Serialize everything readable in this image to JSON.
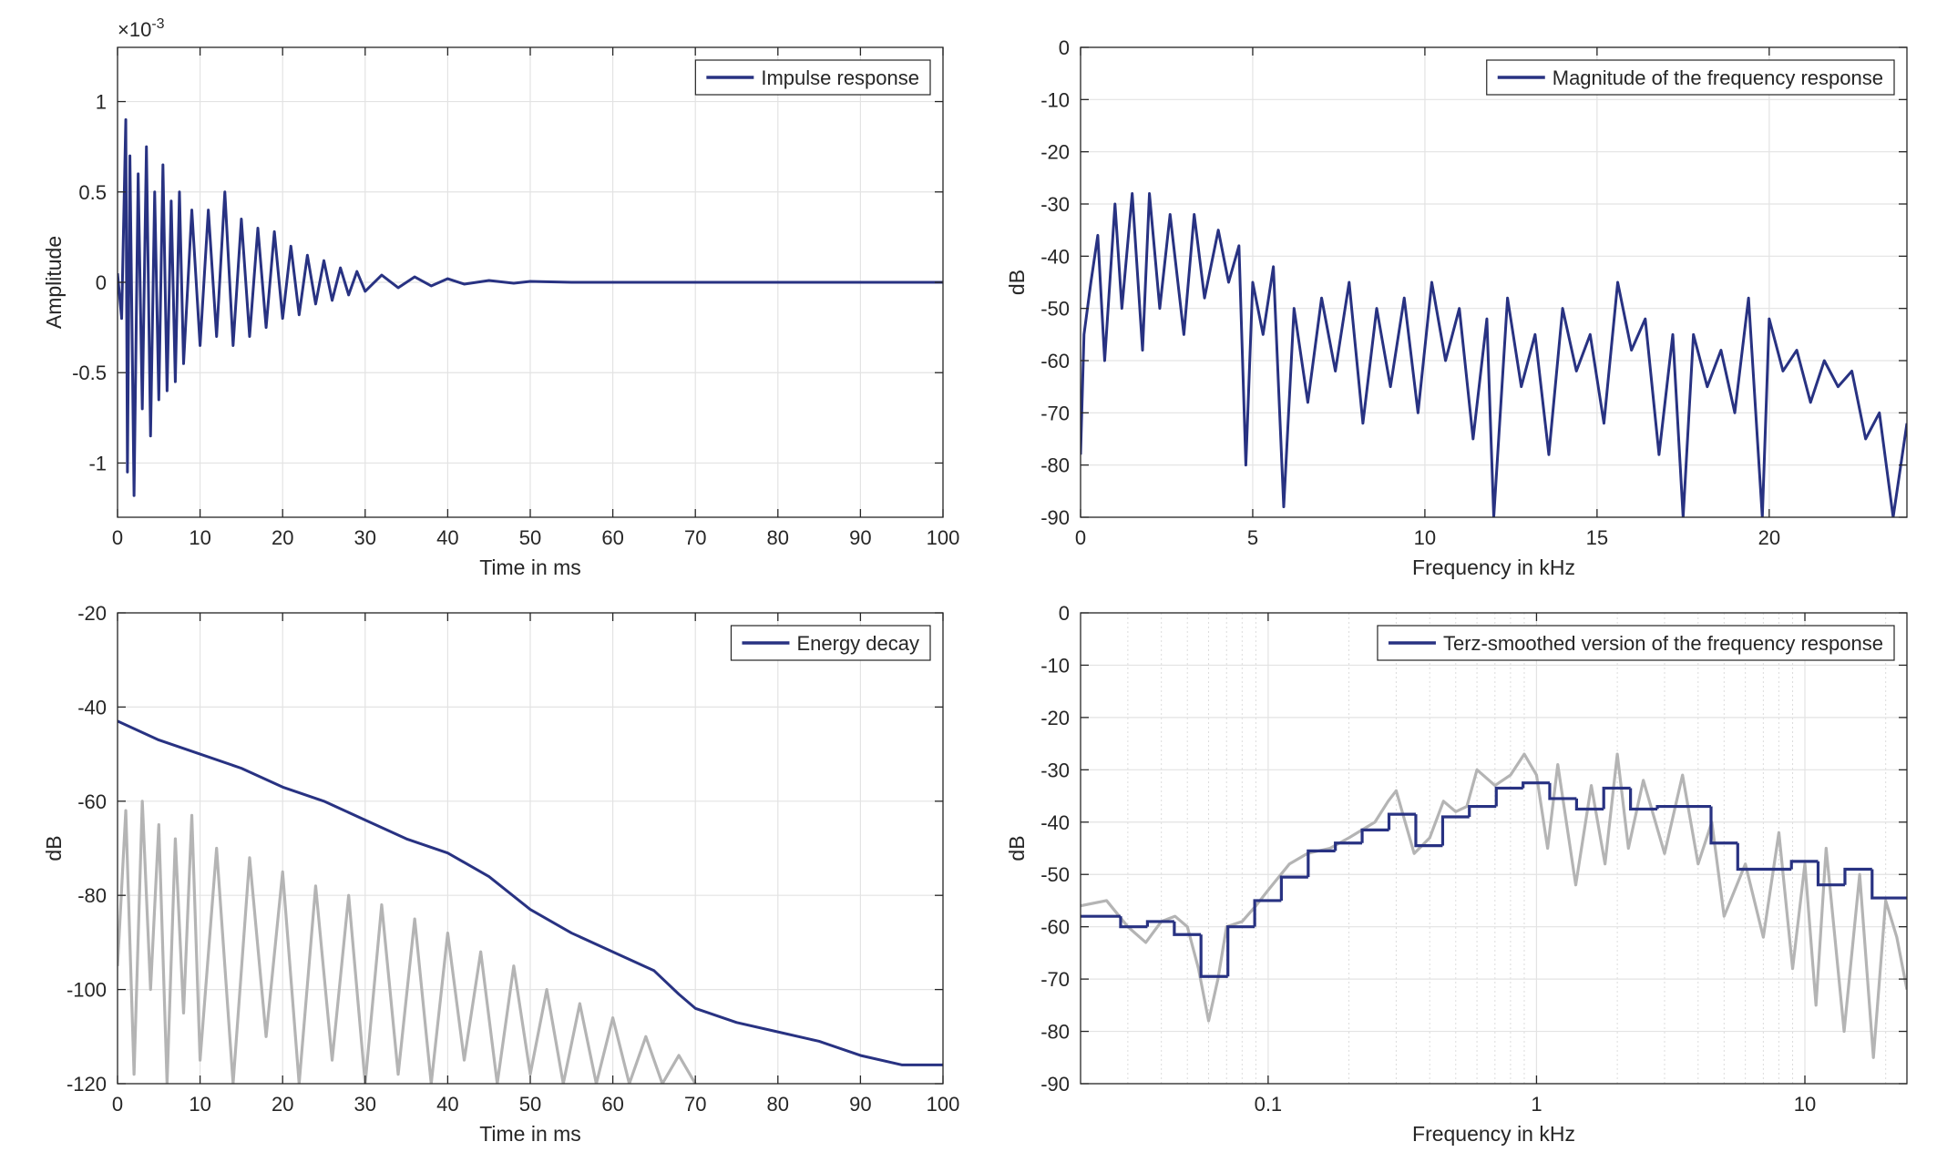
{
  "chart_data": [
    {
      "type": "line",
      "xlabel": "Time in ms",
      "ylabel": "Amplitude",
      "y_multiplier": {
        "base": "×10",
        "exponent": "-3"
      },
      "xlim": [
        0,
        100
      ],
      "xticks": [
        0,
        10,
        20,
        30,
        40,
        50,
        60,
        70,
        80,
        90,
        100
      ],
      "ylim": [
        -1.3,
        1.3
      ],
      "yticks": [
        -1,
        -0.5,
        0,
        0.5,
        1
      ],
      "grid": true,
      "legend": "northeast",
      "x": [
        0,
        0.5,
        1,
        1.2,
        1.5,
        2,
        2.5,
        3,
        3.5,
        4,
        4.5,
        5,
        5.5,
        6,
        6.5,
        7,
        7.5,
        8,
        9,
        10,
        11,
        12,
        13,
        14,
        15,
        16,
        17,
        18,
        19,
        20,
        21,
        22,
        23,
        24,
        25,
        26,
        27,
        28,
        29,
        30,
        32,
        34,
        36,
        38,
        40,
        42,
        45,
        48,
        50,
        55,
        60,
        70,
        80,
        90,
        100
      ],
      "series": [
        {
          "name": "Impulse response",
          "color": "#283282",
          "values": [
            0.05,
            -0.2,
            0.9,
            -1.05,
            0.7,
            -1.18,
            0.6,
            -0.7,
            0.75,
            -0.85,
            0.5,
            -0.65,
            0.65,
            -0.6,
            0.45,
            -0.55,
            0.5,
            -0.45,
            0.4,
            -0.35,
            0.4,
            -0.3,
            0.5,
            -0.35,
            0.35,
            -0.3,
            0.3,
            -0.25,
            0.28,
            -0.2,
            0.2,
            -0.18,
            0.15,
            -0.12,
            0.12,
            -0.1,
            0.08,
            -0.07,
            0.06,
            -0.05,
            0.04,
            -0.03,
            0.03,
            -0.02,
            0.02,
            -0.01,
            0.01,
            -0.005,
            0.005,
            0,
            0,
            0,
            0,
            0,
            0
          ]
        }
      ]
    },
    {
      "type": "line",
      "xlabel": "Frequency in kHz",
      "ylabel": "dB",
      "xlim": [
        0,
        24
      ],
      "xticks": [
        0,
        5,
        10,
        15,
        20
      ],
      "ylim": [
        -90,
        0
      ],
      "yticks": [
        -90,
        -80,
        -70,
        -60,
        -50,
        -40,
        -30,
        -20,
        -10,
        0
      ],
      "grid": true,
      "legend": "northeast",
      "x": [
        0,
        0.1,
        0.3,
        0.5,
        0.7,
        1,
        1.2,
        1.5,
        1.8,
        2,
        2.3,
        2.6,
        3,
        3.3,
        3.6,
        4,
        4.3,
        4.6,
        4.8,
        5,
        5.3,
        5.6,
        5.9,
        6.2,
        6.6,
        7,
        7.4,
        7.8,
        8.2,
        8.6,
        9,
        9.4,
        9.8,
        10.2,
        10.6,
        11,
        11.4,
        11.8,
        12,
        12.4,
        12.8,
        13.2,
        13.6,
        14,
        14.4,
        14.8,
        15.2,
        15.6,
        16,
        16.4,
        16.8,
        17.2,
        17.5,
        17.8,
        18.2,
        18.6,
        19,
        19.4,
        19.8,
        20,
        20.4,
        20.8,
        21.2,
        21.6,
        22,
        22.4,
        22.8,
        23.2,
        23.6,
        24
      ],
      "series": [
        {
          "name": "Magnitude of the frequency response",
          "color": "#283282",
          "values": [
            -78,
            -55,
            -45,
            -36,
            -60,
            -30,
            -50,
            -28,
            -58,
            -28,
            -50,
            -32,
            -55,
            -32,
            -48,
            -35,
            -45,
            -38,
            -80,
            -45,
            -55,
            -42,
            -88,
            -50,
            -68,
            -48,
            -62,
            -45,
            -72,
            -50,
            -65,
            -48,
            -70,
            -45,
            -60,
            -50,
            -75,
            -52,
            -90,
            -48,
            -65,
            -55,
            -78,
            -50,
            -62,
            -55,
            -72,
            -45,
            -58,
            -52,
            -78,
            -55,
            -90,
            -55,
            -65,
            -58,
            -70,
            -48,
            -90,
            -52,
            -62,
            -58,
            -68,
            -60,
            -65,
            -62,
            -75,
            -70,
            -90,
            -72
          ]
        }
      ]
    },
    {
      "type": "line",
      "xlabel": "Time in ms",
      "ylabel": "dB",
      "xlim": [
        0,
        100
      ],
      "xticks": [
        0,
        10,
        20,
        30,
        40,
        50,
        60,
        70,
        80,
        90,
        100
      ],
      "ylim": [
        -120,
        -20
      ],
      "yticks": [
        -120,
        -100,
        -80,
        -60,
        -40,
        -20
      ],
      "grid": true,
      "legend": "northeast",
      "series": [
        {
          "color": "#b4b4b4",
          "x": [
            0,
            1,
            2,
            3,
            4,
            5,
            6,
            7,
            8,
            9,
            10,
            12,
            14,
            16,
            18,
            20,
            22,
            24,
            26,
            28,
            30,
            32,
            34,
            36,
            38,
            40,
            42,
            44,
            46,
            48,
            50,
            52,
            54,
            56,
            58,
            60,
            62,
            64,
            66,
            68,
            70
          ],
          "values": [
            -95,
            -62,
            -118,
            -60,
            -100,
            -65,
            -120,
            -68,
            -105,
            -63,
            -115,
            -70,
            -120,
            -72,
            -110,
            -75,
            -120,
            -78,
            -115,
            -80,
            -120,
            -82,
            -118,
            -85,
            -120,
            -88,
            -115,
            -92,
            -120,
            -95,
            -118,
            -100,
            -120,
            -103,
            -120,
            -106,
            -120,
            -110,
            -120,
            -114,
            -120
          ]
        },
        {
          "name": "Energy decay",
          "color": "#283282",
          "x": [
            0,
            5,
            10,
            15,
            20,
            25,
            30,
            35,
            40,
            45,
            50,
            55,
            60,
            65,
            68,
            70,
            75,
            80,
            85,
            90,
            95,
            100
          ],
          "values": [
            -43,
            -47,
            -50,
            -53,
            -57,
            -60,
            -64,
            -68,
            -71,
            -76,
            -83,
            -88,
            -92,
            -96,
            -101,
            -104,
            -107,
            -109,
            -111,
            -114,
            -116,
            -116
          ]
        }
      ]
    },
    {
      "type": "line",
      "xlabel": "Frequency in kHz",
      "ylabel": "dB",
      "xscale": "log",
      "xlim": [
        0.02,
        24
      ],
      "xticks": [
        0.1,
        1,
        10
      ],
      "xminorticks": [
        0.03,
        0.04,
        0.05,
        0.06,
        0.07,
        0.08,
        0.09,
        0.2,
        0.3,
        0.4,
        0.5,
        0.6,
        0.7,
        0.8,
        0.9,
        2,
        3,
        4,
        5,
        6,
        7,
        8,
        9,
        20
      ],
      "ylim": [
        -90,
        0
      ],
      "yticks": [
        -90,
        -80,
        -70,
        -60,
        -50,
        -40,
        -30,
        -20,
        -10,
        0
      ],
      "grid": true,
      "legend": "northeast",
      "series": [
        {
          "color": "#b4b4b4",
          "x": [
            0.02,
            0.025,
            0.03,
            0.035,
            0.04,
            0.045,
            0.05,
            0.055,
            0.06,
            0.065,
            0.07,
            0.08,
            0.09,
            0.1,
            0.12,
            0.14,
            0.17,
            0.2,
            0.25,
            0.28,
            0.3,
            0.35,
            0.4,
            0.45,
            0.5,
            0.55,
            0.6,
            0.7,
            0.8,
            0.9,
            1,
            1.1,
            1.2,
            1.4,
            1.6,
            1.8,
            2,
            2.2,
            2.5,
            3,
            3.5,
            4,
            4.5,
            5,
            6,
            7,
            8,
            9,
            10,
            11,
            12,
            14,
            16,
            18,
            20,
            22,
            24
          ],
          "values": [
            -56,
            -55,
            -60,
            -63,
            -59,
            -58,
            -60,
            -68,
            -78,
            -70,
            -60,
            -59,
            -56,
            -53,
            -48,
            -46,
            -45,
            -43,
            -40,
            -36,
            -34,
            -46,
            -43,
            -36,
            -38,
            -37,
            -30,
            -33,
            -31,
            -27,
            -31,
            -45,
            -29,
            -52,
            -33,
            -48,
            -27,
            -45,
            -32,
            -46,
            -31,
            -48,
            -40,
            -58,
            -48,
            -62,
            -42,
            -68,
            -48,
            -75,
            -45,
            -80,
            -50,
            -85,
            -55,
            -62,
            -72
          ]
        },
        {
          "name": "Terz-smoothed version of the frequency response",
          "color": "#283282",
          "step": "post",
          "x": [
            0.02,
            0.0282,
            0.0355,
            0.0447,
            0.0562,
            0.0708,
            0.0891,
            0.112,
            0.141,
            0.178,
            0.224,
            0.282,
            0.355,
            0.447,
            0.562,
            0.708,
            0.891,
            1.12,
            1.41,
            1.78,
            2.24,
            2.82,
            4.47,
            5.62,
            8.91,
            11.2,
            14.1,
            17.8
          ],
          "values": [
            -58,
            -60,
            -59,
            -61.5,
            -69.5,
            -60,
            -55,
            -50.5,
            -45.5,
            -44,
            -41.5,
            -38.5,
            -44.5,
            -39,
            -37,
            -33.5,
            -32.5,
            -35.5,
            -37.5,
            -33.5,
            -37.5,
            -37,
            -44,
            -49,
            -47.5,
            -52,
            -49,
            -54.5
          ]
        }
      ]
    }
  ]
}
